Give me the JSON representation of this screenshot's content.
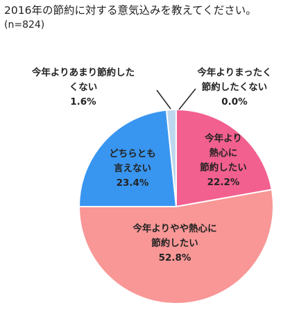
{
  "chart_data": {
    "type": "pie",
    "title": "2016年の節約に対する意気込みを教えてください。",
    "subtitle": "(n=824)",
    "unit": "%",
    "slices": [
      {
        "label_lines": [
          "今年より",
          "熱心に",
          "節約したい"
        ],
        "value": 22.2,
        "value_label": "22.2%",
        "color": "#F2608F"
      },
      {
        "label_lines": [
          "今年よりやや熱心に",
          "節約したい"
        ],
        "value": 52.8,
        "value_label": "52.8%",
        "color": "#F89796"
      },
      {
        "label_lines": [
          "どちらとも",
          "言えない"
        ],
        "value": 23.4,
        "value_label": "23.4%",
        "color": "#3996F0"
      },
      {
        "label_lines": [
          "今年よりあまり節約した",
          "くない"
        ],
        "value": 1.6,
        "value_label": "1.6%",
        "color": "#BDD7EE"
      },
      {
        "label_lines": [
          "今年よりまったく",
          "節約したくない"
        ],
        "value": 0.0,
        "value_label": "0.0%",
        "color": "#FFFFFF"
      }
    ]
  }
}
